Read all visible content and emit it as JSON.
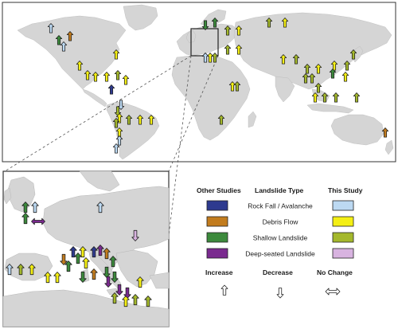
{
  "legend": {
    "header_other": "Other Studies",
    "header_type": "Landslide Type",
    "header_this": "This Study",
    "rows": [
      {
        "label": "Rock Fall / Avalanche",
        "other_color": "#2e3a8f",
        "this_color": "#bcd9f2"
      },
      {
        "label": "Debris Flow",
        "other_color": "#c27c1e",
        "this_color": "#f4ef14"
      },
      {
        "label": "Shallow Landslide",
        "other_color": "#3c8a3c",
        "this_color": "#a4b82c"
      },
      {
        "label": "Deep-seated Landslide",
        "other_color": "#7a2a8f",
        "this_color": "#d8b3e0"
      }
    ],
    "direction": {
      "increase": "Increase",
      "decrease": "Decrease",
      "no_change": "No Change"
    }
  },
  "colors": {
    "land": "#d5d5d5",
    "ocean": "#ffffff",
    "frame": "#333333"
  },
  "markers_world": [
    {
      "type": "rock",
      "study": "this",
      "dir": "up"
    },
    {
      "type": "debris",
      "study": "other",
      "dir": "up"
    },
    {
      "type": "shallow",
      "study": "other",
      "dir": "up"
    },
    {
      "type": "rock",
      "study": "this",
      "dir": "up"
    },
    {
      "type": "debris",
      "study": "this",
      "dir": "up"
    },
    {
      "type": "debris",
      "study": "this",
      "dir": "up"
    },
    {
      "type": "debris",
      "study": "this",
      "dir": "up"
    },
    {
      "type": "debris",
      "study": "this",
      "dir": "up"
    },
    {
      "type": "shallow",
      "study": "this",
      "dir": "up"
    },
    {
      "type": "debris",
      "study": "this",
      "dir": "up"
    },
    {
      "type": "debris",
      "study": "this",
      "dir": "up"
    },
    {
      "type": "shallow",
      "study": "this",
      "dir": "down"
    },
    {
      "type": "rock",
      "study": "this",
      "dir": "down"
    },
    {
      "type": "rock",
      "study": "other",
      "dir": "up"
    },
    {
      "type": "debris",
      "study": "this",
      "dir": "up"
    },
    {
      "type": "shallow",
      "study": "this",
      "dir": "up"
    },
    {
      "type": "debris",
      "study": "this",
      "dir": "up"
    },
    {
      "type": "debris",
      "study": "this",
      "dir": "up"
    },
    {
      "type": "shallow",
      "study": "this",
      "dir": "up"
    },
    {
      "type": "debris",
      "study": "this",
      "dir": "up"
    },
    {
      "type": "rock",
      "study": "this",
      "dir": "up"
    },
    {
      "type": "rock",
      "study": "this",
      "dir": "up"
    },
    {
      "type": "shallow",
      "study": "other",
      "dir": "down"
    },
    {
      "type": "shallow",
      "study": "other",
      "dir": "up"
    },
    {
      "type": "shallow",
      "study": "this",
      "dir": "up"
    },
    {
      "type": "debris",
      "study": "this",
      "dir": "up"
    },
    {
      "type": "debris",
      "study": "this",
      "dir": "up"
    },
    {
      "type": "shallow",
      "study": "this",
      "dir": "up"
    },
    {
      "type": "shallow",
      "study": "other",
      "dir": "up"
    },
    {
      "type": "debris",
      "study": "this",
      "dir": "up"
    },
    {
      "type": "debris",
      "study": "this",
      "dir": "up"
    },
    {
      "type": "shallow",
      "study": "this",
      "dir": "up"
    },
    {
      "type": "shallow",
      "study": "this",
      "dir": "up"
    },
    {
      "type": "shallow",
      "study": "this",
      "dir": "up"
    },
    {
      "type": "debris",
      "study": "this",
      "dir": "up"
    },
    {
      "type": "debris",
      "study": "this",
      "dir": "up"
    },
    {
      "type": "shallow",
      "study": "this",
      "dir": "up"
    },
    {
      "type": "shallow",
      "study": "this",
      "dir": "up"
    },
    {
      "type": "debris",
      "study": "this",
      "dir": "up"
    },
    {
      "type": "shallow",
      "study": "this",
      "dir": "up"
    },
    {
      "type": "shallow",
      "study": "this",
      "dir": "up"
    },
    {
      "type": "shallow",
      "study": "this",
      "dir": "up"
    },
    {
      "type": "debris",
      "study": "this",
      "dir": "up"
    },
    {
      "type": "shallow",
      "study": "this",
      "dir": "up"
    },
    {
      "type": "shallow",
      "study": "this",
      "dir": "up"
    },
    {
      "type": "shallow",
      "study": "other",
      "dir": "up"
    },
    {
      "type": "debris",
      "study": "this",
      "dir": "up"
    },
    {
      "type": "debris",
      "study": "this",
      "dir": "up"
    },
    {
      "type": "shallow",
      "study": "this",
      "dir": "up"
    },
    {
      "type": "shallow",
      "study": "this",
      "dir": "up"
    },
    {
      "type": "shallow",
      "study": "this",
      "dir": "up"
    },
    {
      "type": "debris",
      "study": "other",
      "dir": "up"
    },
    {
      "type": "rock",
      "study": "this",
      "dir": "up"
    },
    {
      "type": "shallow",
      "study": "this",
      "dir": "up"
    }
  ],
  "markers_inset": [
    {
      "type": "shallow",
      "study": "other",
      "dir": "up"
    },
    {
      "type": "rock",
      "study": "this",
      "dir": "up"
    },
    {
      "type": "shallow",
      "study": "other",
      "dir": "up"
    },
    {
      "type": "deep",
      "study": "other",
      "dir": "both"
    },
    {
      "type": "rock",
      "study": "this",
      "dir": "up"
    },
    {
      "type": "deep",
      "study": "this",
      "dir": "down"
    },
    {
      "type": "rock",
      "study": "other",
      "dir": "up"
    },
    {
      "type": "debris",
      "study": "this",
      "dir": "up"
    },
    {
      "type": "debris",
      "study": "other",
      "dir": "down"
    },
    {
      "type": "shallow",
      "study": "other",
      "dir": "up"
    },
    {
      "type": "debris",
      "study": "this",
      "dir": "up"
    },
    {
      "type": "rock",
      "study": "other",
      "dir": "up"
    },
    {
      "type": "deep",
      "study": "other",
      "dir": "up"
    },
    {
      "type": "debris",
      "study": "other",
      "dir": "up"
    },
    {
      "type": "shallow",
      "study": "other",
      "dir": "up"
    },
    {
      "type": "shallow",
      "study": "other",
      "dir": "down"
    },
    {
      "type": "debris",
      "study": "other",
      "dir": "up"
    },
    {
      "type": "shallow",
      "study": "other",
      "dir": "down"
    },
    {
      "type": "shallow",
      "study": "other",
      "dir": "up"
    },
    {
      "type": "deep",
      "study": "other",
      "dir": "down"
    },
    {
      "type": "rock",
      "study": "this",
      "dir": "up"
    },
    {
      "type": "shallow",
      "study": "this",
      "dir": "up"
    },
    {
      "type": "debris",
      "study": "this",
      "dir": "up"
    },
    {
      "type": "debris",
      "study": "this",
      "dir": "up"
    },
    {
      "type": "debris",
      "study": "this",
      "dir": "up"
    },
    {
      "type": "shallow",
      "study": "other",
      "dir": "down"
    },
    {
      "type": "deep",
      "study": "other",
      "dir": "down"
    },
    {
      "type": "debris",
      "study": "this",
      "dir": "up"
    },
    {
      "type": "deep",
      "study": "other",
      "dir": "down"
    },
    {
      "type": "shallow",
      "study": "this",
      "dir": "up"
    },
    {
      "type": "debris",
      "study": "this",
      "dir": "up"
    },
    {
      "type": "shallow",
      "study": "this",
      "dir": "up"
    },
    {
      "type": "shallow",
      "study": "this",
      "dir": "up"
    }
  ]
}
